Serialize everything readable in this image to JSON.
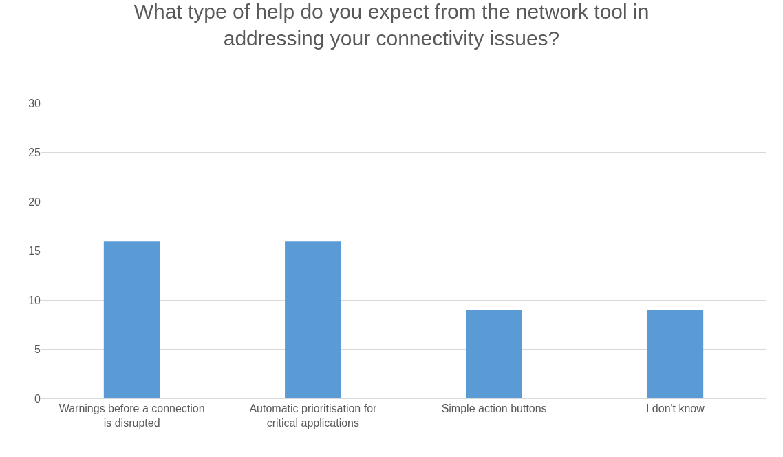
{
  "chart_data": {
    "type": "bar",
    "title": "What type of help do you expect from the network tool in addressing your connectivity issues?",
    "categories": [
      "Warnings before a connection is disrupted",
      "Automatic prioritisation for critical applications",
      "Simple action buttons",
      "I don't know"
    ],
    "values": [
      16,
      16,
      9,
      9
    ],
    "color": "#5b9bd5",
    "ylim": [
      0,
      30
    ],
    "yticks": [
      0,
      5,
      10,
      15,
      20,
      25,
      30
    ],
    "grid": "y"
  }
}
